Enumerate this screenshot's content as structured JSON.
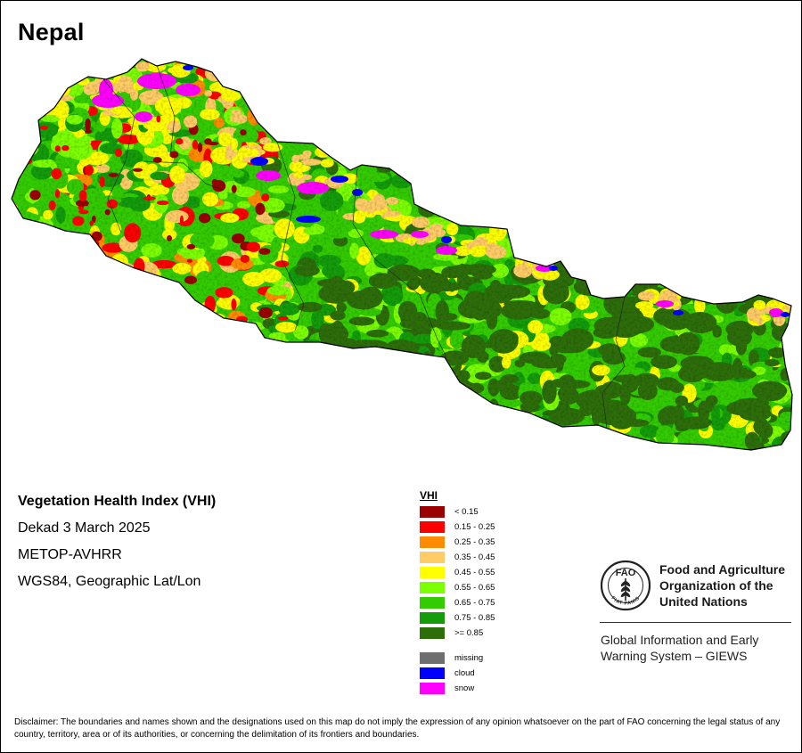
{
  "map": {
    "country": "Nepal",
    "product": "Vegetation Health Index (VHI)",
    "period": "Dekad 3 March 2025",
    "sensor": "METOP-AVHRR",
    "projection": "WGS84, Geographic Lat/Lon",
    "dominant_pattern": {
      "west_and_northwest": "mixed yellow, orange and red (low VHI)",
      "central_and_east": "mostly green to dark green (high VHI)",
      "northern_high_mountains": "snow (magenta) with patches of cloud (blue)"
    }
  },
  "legend": {
    "title": "VHI",
    "classes": [
      {
        "label": "< 0.15",
        "color": "#9b0000"
      },
      {
        "label": "0.15 - 0.25",
        "color": "#ff0000"
      },
      {
        "label": "0.25 - 0.35",
        "color": "#ff8c00"
      },
      {
        "label": "0.35 - 0.45",
        "color": "#ffcc66"
      },
      {
        "label": "0.45 - 0.55",
        "color": "#ffff00"
      },
      {
        "label": "0.55 - 0.65",
        "color": "#7cff00"
      },
      {
        "label": "0.65 - 0.75",
        "color": "#33cc00"
      },
      {
        "label": "0.75 - 0.85",
        "color": "#149c0a"
      },
      {
        "label": ">= 0.85",
        "color": "#2d6e0a"
      }
    ],
    "extra": [
      {
        "label": "missing",
        "color": "#6e6e6e"
      },
      {
        "label": "cloud",
        "color": "#0000ff"
      },
      {
        "label": "snow",
        "color": "#ff00ff"
      }
    ]
  },
  "organization": {
    "name_lines": [
      "Food and Agriculture",
      "Organization of the",
      "United Nations"
    ],
    "logo_text": "FAO",
    "logo_motto": "FIAT PANIS",
    "logo_icon": "fao-wheat-emblem-icon",
    "system_lines": [
      "Global Information and Early",
      "Warning System – GIEWS"
    ]
  },
  "disclaimer": "Disclaimer: The boundaries and names shown and the designations used on this map do not imply the expression of any opinion whatsoever on the part of FAO concerning the legal status of any country, territory, area or of its authorities, or concerning the delimitation of its frontiers and boundaries."
}
